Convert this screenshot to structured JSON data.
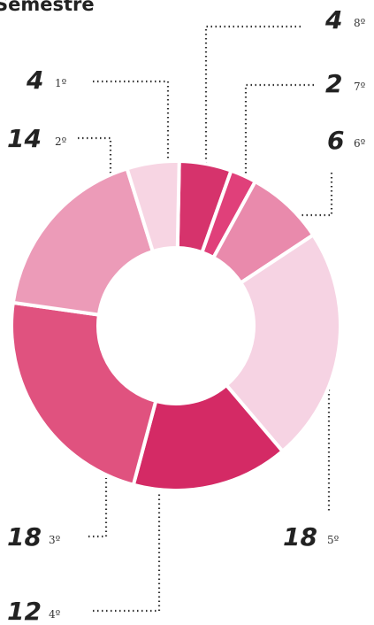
{
  "chart_data": {
    "type": "donut",
    "title": "Semestre",
    "categories": [
      "1º",
      "2º",
      "3º",
      "4º",
      "5º",
      "6º",
      "7º",
      "8º"
    ],
    "values": [
      4,
      14,
      18,
      12,
      18,
      6,
      2,
      4
    ],
    "colors": [
      "#f7d5e3",
      "#ec9bb8",
      "#e0527f",
      "#d42a65",
      "#f6d3e3",
      "#e98aac",
      "#e0407a",
      "#d6336c"
    ]
  }
}
